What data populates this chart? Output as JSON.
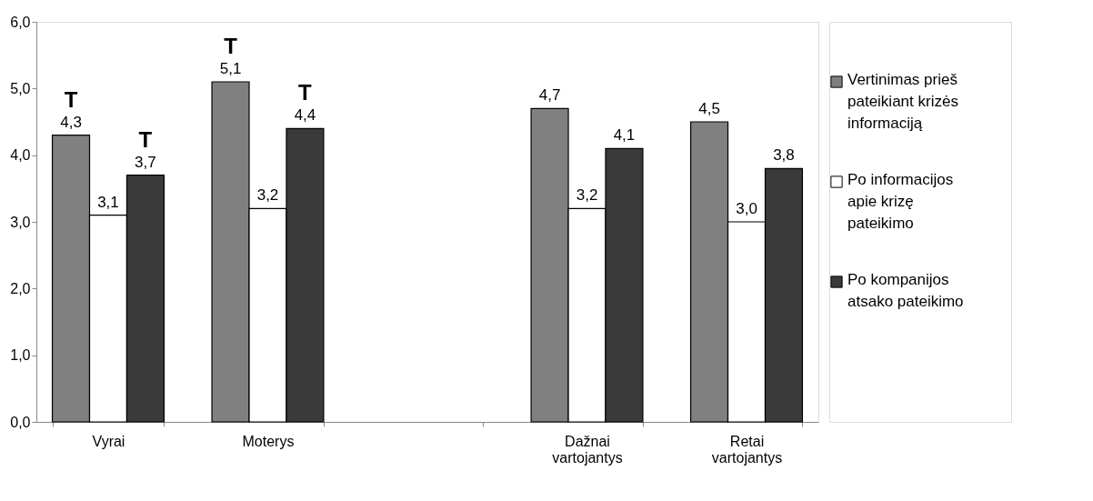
{
  "chart_data": {
    "type": "bar",
    "categories": [
      "Vyrai",
      "Moterys",
      null,
      "Dažnai vartojantys",
      "Retai vartojantys"
    ],
    "series": [
      {
        "name": "Vertinimas prieš pateikiant krizės informaciją",
        "color": "#808080",
        "values": [
          4.3,
          5.1,
          null,
          4.7,
          4.5
        ],
        "value_labels": [
          "4,3",
          "5,1",
          null,
          "4,7",
          "4,5"
        ]
      },
      {
        "name": "Po informacijos apie krizę pateikimo",
        "color": "#ffffff",
        "values": [
          3.1,
          3.2,
          null,
          3.2,
          3.0
        ],
        "value_labels": [
          "3,1",
          "3,2",
          null,
          "3,2",
          "3,0"
        ]
      },
      {
        "name": "Po kompanijos atsako pateikimo",
        "color": "#3a3a3a",
        "values": [
          3.7,
          4.4,
          null,
          4.1,
          3.8
        ],
        "value_labels": [
          "3,7",
          "4,4",
          null,
          "4,1",
          "3,8"
        ]
      }
    ],
    "ylim": [
      0,
      6
    ],
    "yticks": [
      {
        "value": 0,
        "label": "0,0"
      },
      {
        "value": 1,
        "label": "1,0"
      },
      {
        "value": 2,
        "label": "2,0"
      },
      {
        "value": 3,
        "label": "3,0"
      },
      {
        "value": 4,
        "label": "4,0"
      },
      {
        "value": 5,
        "label": "5,0"
      },
      {
        "value": 6,
        "label": "6,0"
      }
    ],
    "annotations": [
      "T",
      "T",
      "T",
      "T"
    ],
    "grid": false,
    "legend": "right"
  }
}
